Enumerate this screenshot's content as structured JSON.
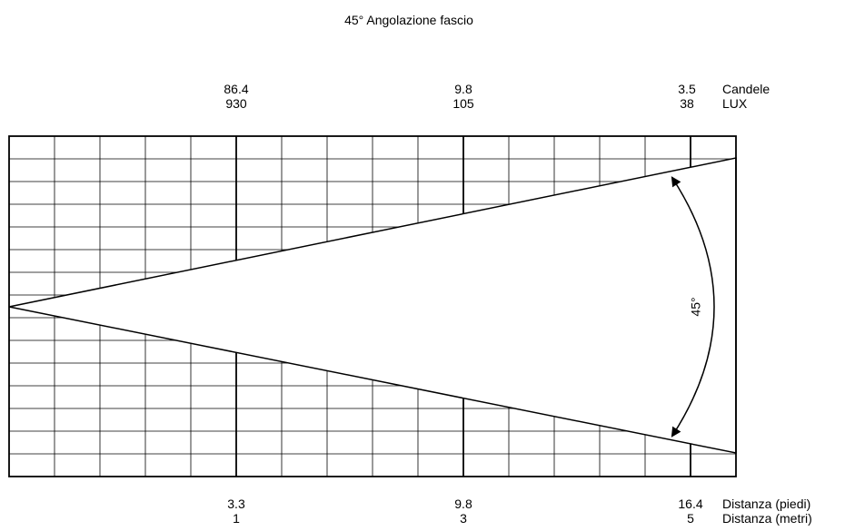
{
  "title": "45° Angolazione fascio",
  "beam_angle_label": "45°",
  "top_labels": [
    {
      "candele": "86.4",
      "lux": "930"
    },
    {
      "candele": "9.8",
      "lux": "105"
    },
    {
      "candele": "3.5",
      "lux": "38"
    }
  ],
  "top_units": {
    "candele": "Candele",
    "lux": "LUX"
  },
  "bottom_labels": [
    {
      "feet": "3.3",
      "meters": "1"
    },
    {
      "feet": "9.8",
      "meters": "3"
    },
    {
      "feet": "16.4",
      "meters": "5"
    }
  ],
  "bottom_units": {
    "feet": "Distanza (piedi)",
    "meters": "Distanza (metri)"
  }
}
